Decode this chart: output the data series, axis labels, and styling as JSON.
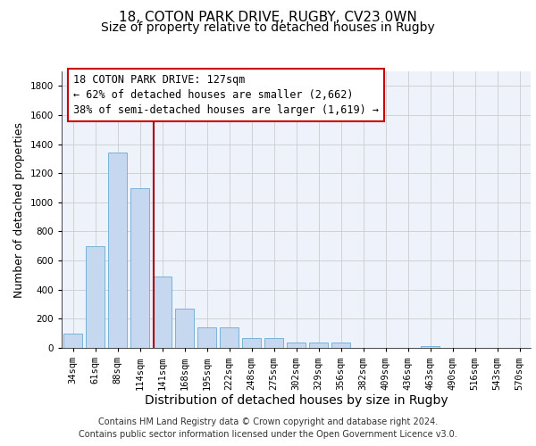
{
  "title_line1": "18, COTON PARK DRIVE, RUGBY, CV23 0WN",
  "title_line2": "Size of property relative to detached houses in Rugby",
  "xlabel": "Distribution of detached houses by size in Rugby",
  "ylabel": "Number of detached properties",
  "categories": [
    "34sqm",
    "61sqm",
    "88sqm",
    "114sqm",
    "141sqm",
    "168sqm",
    "195sqm",
    "222sqm",
    "248sqm",
    "275sqm",
    "302sqm",
    "329sqm",
    "356sqm",
    "382sqm",
    "409sqm",
    "436sqm",
    "463sqm",
    "490sqm",
    "516sqm",
    "543sqm",
    "570sqm"
  ],
  "values": [
    100,
    700,
    1340,
    1100,
    490,
    270,
    140,
    140,
    70,
    70,
    35,
    35,
    35,
    0,
    0,
    0,
    15,
    0,
    0,
    0,
    0
  ],
  "bar_color": "#c5d8ef",
  "bar_edge_color": "#6aaad4",
  "bar_width": 0.85,
  "red_line_x": 3.62,
  "red_line_color": "#aa0000",
  "annotation_text": "18 COTON PARK DRIVE: 127sqm\n← 62% of detached houses are smaller (2,662)\n38% of semi-detached houses are larger (1,619) →",
  "annotation_box_color": "#ffffff",
  "annotation_box_edge": "#cc0000",
  "ylim": [
    0,
    1900
  ],
  "yticks": [
    0,
    200,
    400,
    600,
    800,
    1000,
    1200,
    1400,
    1600,
    1800
  ],
  "grid_color": "#cccccc",
  "background_color": "#eef2fb",
  "footer_text": "Contains HM Land Registry data © Crown copyright and database right 2024.\nContains public sector information licensed under the Open Government Licence v3.0.",
  "title_fontsize": 11,
  "subtitle_fontsize": 10,
  "axis_label_fontsize": 9,
  "tick_fontsize": 7.5,
  "annotation_fontsize": 8.5,
  "footer_fontsize": 7
}
